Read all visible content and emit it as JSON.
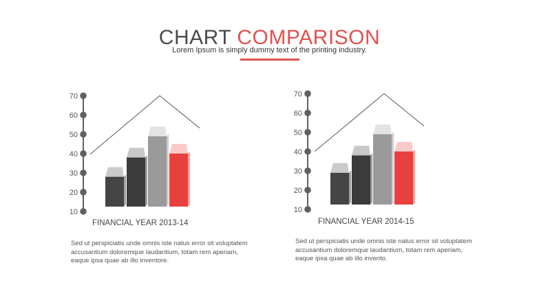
{
  "header": {
    "title_part1": "CHART",
    "title_part2": "COMPARISON",
    "subtitle": "Lorem Ipsum is simply dummy text of the printing industry."
  },
  "colors": {
    "accent": "#e0524f",
    "bar_dark": "#454545",
    "bar_mid": "#3b3b3b",
    "bar_light": "#9a9a9a",
    "bar_red": "#e8403e",
    "axis": "#606060"
  },
  "chart_data": [
    {
      "type": "bar",
      "xlabel": "FINANCIAL YEAR 2013-14",
      "ylim": [
        10,
        70
      ],
      "yticks": [
        10,
        20,
        30,
        40,
        50,
        60,
        70
      ],
      "values": [
        28,
        38,
        49,
        40
      ],
      "bar_colors": [
        "#454545",
        "#3b3b3b",
        "#9a9a9a",
        "#e8403e"
      ],
      "description": "Sed ut perspiciatis unde omnis iste natus error sit voluptatem accusantium doloremque laudantium, totam rem aperiam, eaque ipsa quae ab illo inventore."
    },
    {
      "type": "bar",
      "xlabel": "FINANCIAL YEAR 2014-15",
      "ylim": [
        10,
        70
      ],
      "yticks": [
        10,
        20,
        30,
        40,
        50,
        60,
        70
      ],
      "values": [
        29,
        38,
        49,
        40
      ],
      "bar_colors": [
        "#454545",
        "#3b3b3b",
        "#9a9a9a",
        "#e8403e"
      ],
      "description": "Sed ut perspiciatis unde omnis iste natus error sit voluptatem accusantium doloremque laudantium, totam rem aperiam, eaque ipsa quae ab illo invento."
    }
  ]
}
